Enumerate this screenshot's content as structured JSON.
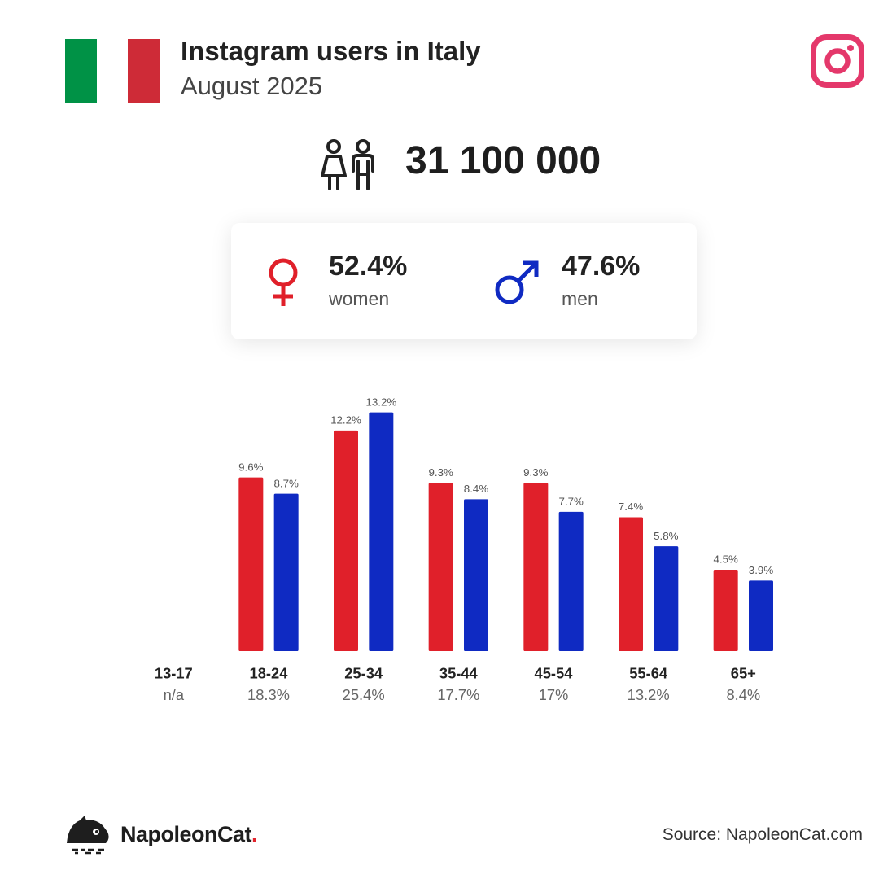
{
  "header": {
    "title": "Instagram users in Italy",
    "subtitle": "August 2025"
  },
  "flag_colors": [
    "#009246",
    "#ffffff",
    "#ce2b37"
  ],
  "icons": {
    "platform": "instagram-icon",
    "users": "users-icon",
    "female": "female-symbol-icon",
    "male": "male-symbol-icon",
    "brand": "napoleoncat-logo-icon"
  },
  "colors": {
    "women": "#e0202a",
    "men": "#0f2ac2",
    "instagram": "#e4386b"
  },
  "total_users": "31 100 000",
  "gender": {
    "women_pct": "52.4%",
    "women_label": "women",
    "men_pct": "47.6%",
    "men_label": "men"
  },
  "chart_data": {
    "type": "bar",
    "categories": [
      "13-17",
      "18-24",
      "25-34",
      "35-44",
      "45-54",
      "55-64",
      "65+"
    ],
    "category_shares": [
      "n/a",
      "18.3%",
      "25.4%",
      "17.7%",
      "17%",
      "13.2%",
      "8.4%"
    ],
    "series": [
      {
        "name": "women",
        "color": "#e0202a",
        "values": [
          null,
          9.6,
          12.2,
          9.3,
          9.3,
          7.4,
          4.5
        ]
      },
      {
        "name": "men",
        "color": "#0f2ac2",
        "values": [
          null,
          8.7,
          13.2,
          8.4,
          7.7,
          5.8,
          3.9
        ]
      }
    ],
    "value_suffix": "%",
    "ylim": [
      0,
      13.2
    ],
    "grid": false,
    "legend": "none"
  },
  "footer": {
    "brand_name": "NapoleonCat",
    "brand_dot": ".",
    "source": "Source: NapoleonCat.com"
  }
}
